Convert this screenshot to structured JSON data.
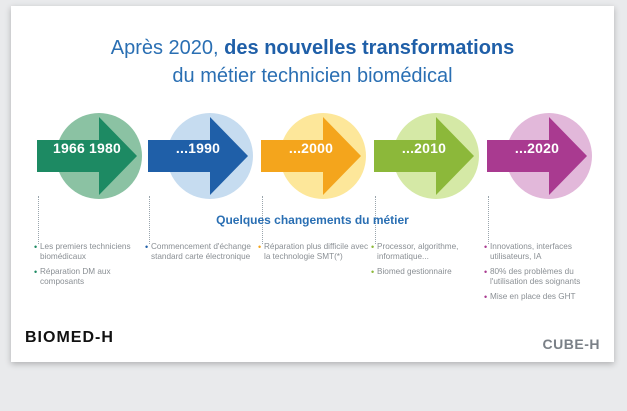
{
  "title": {
    "prefix": "Après 2020, ",
    "bold": "des nouvelles transformations",
    "line2": "du métier technicien biomédical"
  },
  "subtitle": "Quelques changements du métier",
  "eras": [
    {
      "label": "1966 1980",
      "arrow_color": "#1d8a63",
      "circle_color": "#8bc2a3",
      "bullet_color": "#1d8a63",
      "notes": [
        "Les premiers techniciens biomédicaux",
        "Réparation DM aux composants"
      ]
    },
    {
      "label": "...1990",
      "arrow_color": "#1f5fa8",
      "circle_color": "#c6dcf0",
      "bullet_color": "#1f5fa8",
      "notes": [
        "Commencement d'échange standard carte électronique"
      ]
    },
    {
      "label": "...2000",
      "arrow_color": "#f4a51c",
      "circle_color": "#fde79a",
      "bullet_color": "#f4a51c",
      "notes": [
        "Réparation plus difficile avec la technologie SMT(*)"
      ]
    },
    {
      "label": "...2010",
      "arrow_color": "#8cb83a",
      "circle_color": "#d5e9a6",
      "bullet_color": "#8cb83a",
      "notes": [
        "Processor, algorithme, informatique...",
        "Biomed gestionnaire"
      ]
    },
    {
      "label": "...2020",
      "arrow_color": "#a93a90",
      "circle_color": "#e2b8da",
      "bullet_color": "#a93a90",
      "notes": [
        "Innovations, interfaces utilisateurs, IA",
        "80% des problèmes du l'utilisation des soignants",
        "Mise en place des GHT"
      ]
    }
  ],
  "logos": {
    "left": "BIOMED-H",
    "right": "CUBE-H"
  }
}
